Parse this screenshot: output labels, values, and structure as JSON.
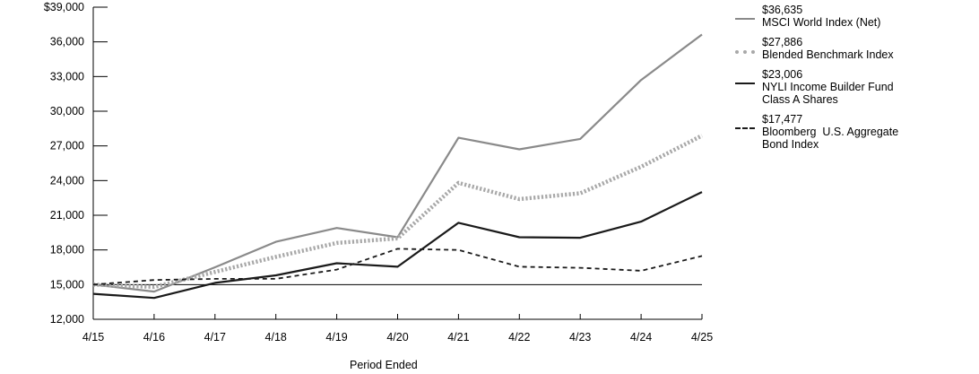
{
  "chart_data": {
    "type": "line",
    "xlabel": "Period Ended",
    "ylabel": "",
    "categories": [
      "4/15",
      "4/16",
      "4/17",
      "4/18",
      "4/19",
      "4/20",
      "4/21",
      "4/22",
      "4/23",
      "4/24",
      "4/25"
    ],
    "ylim": [
      12000,
      39000
    ],
    "yticks": [
      12000,
      15000,
      18000,
      21000,
      24000,
      27000,
      30000,
      33000,
      36000,
      39000
    ],
    "ytick_labels": [
      "12,000",
      "15,000",
      "18,000",
      "21,000",
      "24,000",
      "27,000",
      "30,000",
      "33,000",
      "36,000",
      "$39,000"
    ],
    "reference_line": 15000,
    "grid": false,
    "legend_position": "right",
    "series": [
      {
        "name": "MSCI World Index (Net)",
        "end_label": "$36,635",
        "style": "solid",
        "color": "#8a8a8a",
        "values": [
          15000,
          14400,
          16500,
          18700,
          19900,
          19100,
          27700,
          26700,
          27600,
          32700,
          36635
        ]
      },
      {
        "name": "Blended Benchmark Index",
        "end_label": "$27,886",
        "style": "dotted",
        "color": "#a8a8a8",
        "values": [
          15000,
          14800,
          16100,
          17400,
          18600,
          19000,
          23800,
          22400,
          22900,
          25200,
          27886
        ]
      },
      {
        "name": "NYLI Income Builder Fund Class A Shares",
        "end_label": "$23,006",
        "style": "solid",
        "color": "#1a1a1a",
        "values": [
          14200,
          13850,
          15150,
          15800,
          16850,
          16550,
          20350,
          19100,
          19050,
          20450,
          23006
        ]
      },
      {
        "name": "Bloomberg  U.S. Aggregate Bond Index",
        "end_label": "$17,477",
        "style": "dashed",
        "color": "#1a1a1a",
        "values": [
          15000,
          15400,
          15500,
          15500,
          16300,
          18100,
          18000,
          16550,
          16450,
          16200,
          17477
        ]
      }
    ]
  }
}
